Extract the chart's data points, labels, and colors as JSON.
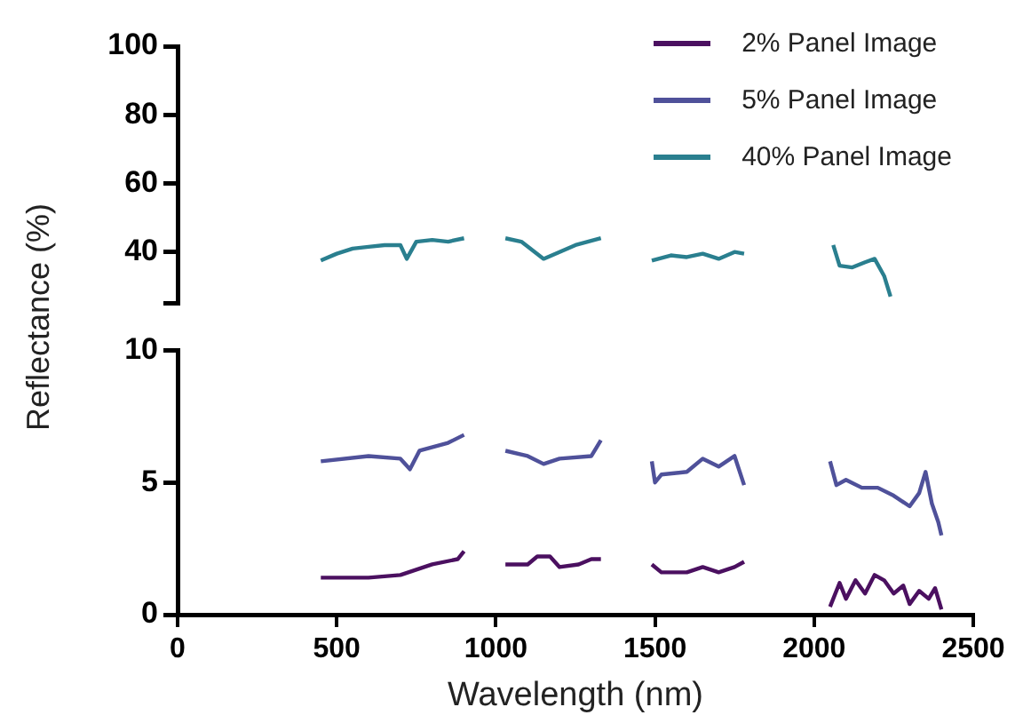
{
  "chart_data": [
    {
      "type": "line",
      "xlim": [
        0,
        2500
      ],
      "ylim": [
        25,
        100
      ],
      "yticks": [
        {
          "value": 25,
          "label": null
        },
        40,
        60,
        80,
        100
      ],
      "tick_labels": "y",
      "grid": false,
      "legend": "top right",
      "marker": "none",
      "line_style": "solid",
      "series": [
        {
          "name": "40% Panel Image",
          "color": "#2a7f8f",
          "x": [
            450,
            500,
            550,
            600,
            650,
            700,
            720,
            750,
            800,
            850,
            900,
            960,
            1030,
            1080,
            1150,
            1200,
            1250,
            1330,
            1410,
            1490,
            1550,
            1600,
            1650,
            1700,
            1750,
            1780,
            1920,
            2060,
            2080,
            2120,
            2160,
            2190,
            2220,
            2240
          ],
          "values": [
            37.5,
            39.5,
            41,
            41.5,
            42,
            42,
            38,
            43,
            43.5,
            43,
            44,
            null,
            44,
            43,
            38,
            40,
            42,
            44,
            null,
            37.5,
            39,
            38.5,
            39.5,
            38,
            40,
            39.5,
            null,
            42,
            36,
            35.5,
            37,
            38,
            33,
            27
          ]
        }
      ]
    },
    {
      "type": "line",
      "xlim": [
        0,
        2500
      ],
      "xticks": [
        0,
        500,
        1000,
        1500,
        2000,
        2500
      ],
      "ylim": [
        0,
        10
      ],
      "yticks": [
        0,
        5,
        10
      ],
      "xlabel": "Wavelength (nm)",
      "ylabel": "Reflectance (%)",
      "grid": false,
      "legend": "top right",
      "marker": "none",
      "line_style": "solid",
      "series": [
        {
          "name": "2% Panel Image",
          "color": "#4b1060",
          "x": [
            450,
            600,
            700,
            800,
            880,
            900,
            960,
            1030,
            1100,
            1130,
            1170,
            1200,
            1260,
            1300,
            1330,
            1410,
            1490,
            1520,
            1600,
            1650,
            1700,
            1750,
            1780,
            1920,
            2050,
            2080,
            2100,
            2130,
            2160,
            2190,
            2220,
            2250,
            2280,
            2300,
            2330,
            2360,
            2380,
            2400
          ],
          "values": [
            1.4,
            1.4,
            1.5,
            1.9,
            2.1,
            2.4,
            null,
            1.9,
            1.9,
            2.2,
            2.2,
            1.8,
            1.9,
            2.1,
            2.1,
            null,
            1.9,
            1.6,
            1.6,
            1.8,
            1.6,
            1.8,
            2.0,
            null,
            0.3,
            1.2,
            0.6,
            1.3,
            0.8,
            1.5,
            1.3,
            0.8,
            1.1,
            0.4,
            0.9,
            0.6,
            1.0,
            0.2
          ]
        },
        {
          "name": "5% Panel Image",
          "color": "#4f519a",
          "x": [
            450,
            600,
            700,
            730,
            760,
            850,
            900,
            960,
            1030,
            1100,
            1150,
            1200,
            1300,
            1330,
            1410,
            1490,
            1500,
            1520,
            1600,
            1650,
            1700,
            1750,
            1780,
            1920,
            2050,
            2070,
            2100,
            2150,
            2200,
            2250,
            2300,
            2330,
            2350,
            2370,
            2390,
            2400
          ],
          "values": [
            5.8,
            6.0,
            5.9,
            5.5,
            6.2,
            6.5,
            6.8,
            null,
            6.2,
            6.0,
            5.7,
            5.9,
            6.0,
            6.6,
            null,
            5.8,
            5.0,
            5.3,
            5.4,
            5.9,
            5.6,
            6.0,
            4.9,
            null,
            5.8,
            4.9,
            5.1,
            4.8,
            4.8,
            4.5,
            4.1,
            4.6,
            5.4,
            4.2,
            3.5,
            3.0
          ]
        }
      ]
    }
  ]
}
